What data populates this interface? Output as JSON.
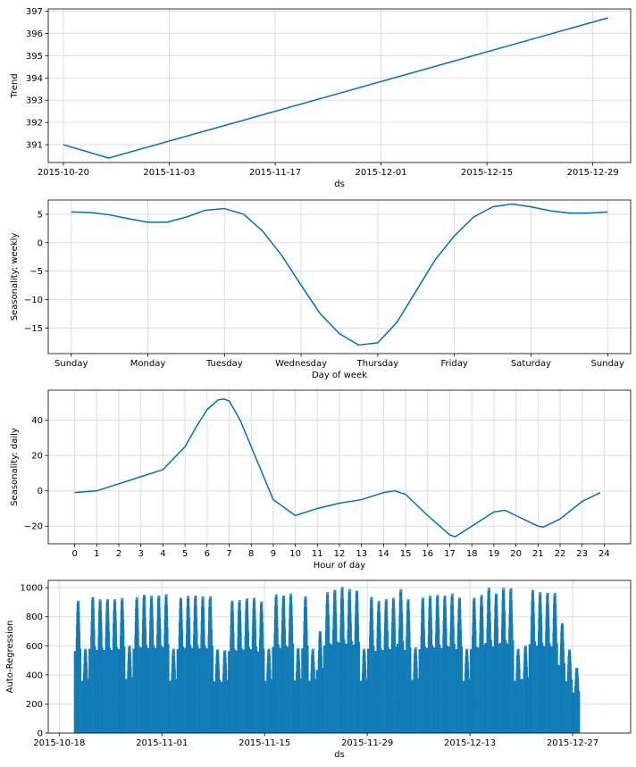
{
  "colors": {
    "series": "#0072B2",
    "grid": "#dddddd"
  },
  "chart_data": [
    {
      "id": "trend",
      "type": "line",
      "xlabel": "ds",
      "ylabel": "Trend",
      "x_type": "date",
      "xlim": [
        "2015-10-18",
        "2016-01-03"
      ],
      "ylim": [
        390.2,
        397.1
      ],
      "x_ticks": [
        "2015-10-20",
        "2015-11-03",
        "2015-11-17",
        "2015-12-01",
        "2015-12-15",
        "2015-12-29"
      ],
      "x_tick_labels": [
        "2015-10-20",
        "2015-11-03",
        "2015-11-17",
        "2015-12-01",
        "2015-12-15",
        "2015-12-29"
      ],
      "y_ticks": [
        391,
        392,
        393,
        394,
        395,
        396,
        397
      ],
      "y_tick_labels": [
        "391",
        "392",
        "393",
        "394",
        "395",
        "396",
        "397"
      ],
      "grid": true,
      "series": [
        {
          "x": [
            "2015-10-20",
            "2015-10-26",
            "2015-12-31"
          ],
          "y": [
            391.0,
            390.4,
            396.7
          ]
        }
      ]
    },
    {
      "id": "weekly",
      "type": "line",
      "xlabel": "Day of week",
      "ylabel": "Seasonality: weekly",
      "xlim": [
        -0.3,
        7.3
      ],
      "ylim": [
        -19.5,
        7.5
      ],
      "x_ticks": [
        0,
        1,
        2,
        3,
        4,
        5,
        6,
        7
      ],
      "x_tick_labels": [
        "Sunday",
        "Monday",
        "Tuesday",
        "Wednesday",
        "Thursday",
        "Friday",
        "Saturday",
        "Sunday"
      ],
      "y_ticks": [
        5,
        0,
        -5,
        -10,
        -15
      ],
      "y_tick_labels": [
        "5",
        "0",
        "−5",
        "−10",
        "−15"
      ],
      "grid": true,
      "series": [
        {
          "x": [
            0,
            0.25,
            0.5,
            0.75,
            1,
            1.25,
            1.5,
            1.75,
            2,
            2.25,
            2.5,
            2.75,
            3,
            3.25,
            3.5,
            3.75,
            4,
            4.25,
            4.5,
            4.75,
            5,
            5.25,
            5.5,
            5.75,
            6,
            6.25,
            6.5,
            6.75,
            7
          ],
          "y": [
            5.4,
            5.3,
            4.9,
            4.2,
            3.6,
            3.6,
            4.5,
            5.7,
            6.0,
            5.0,
            2.0,
            -2.3,
            -7.5,
            -12.5,
            -16.0,
            -18.0,
            -17.6,
            -14.0,
            -8.5,
            -3.0,
            1.2,
            4.5,
            6.3,
            6.8,
            6.3,
            5.6,
            5.2,
            5.2,
            5.4
          ]
        }
      ]
    },
    {
      "id": "daily",
      "type": "line",
      "xlabel": "Hour of day",
      "ylabel": "Seasonality: daily",
      "xlim": [
        -1.2,
        25.2
      ],
      "ylim": [
        -30,
        57
      ],
      "x_ticks": [
        0,
        1,
        2,
        3,
        4,
        5,
        6,
        7,
        8,
        9,
        10,
        11,
        12,
        13,
        14,
        15,
        16,
        17,
        18,
        19,
        20,
        21,
        22,
        23,
        24
      ],
      "x_tick_labels": [
        "0",
        "1",
        "2",
        "3",
        "4",
        "5",
        "6",
        "7",
        "8",
        "9",
        "10",
        "11",
        "12",
        "13",
        "14",
        "15",
        "16",
        "17",
        "18",
        "19",
        "20",
        "21",
        "22",
        "23",
        "24"
      ],
      "y_ticks": [
        40,
        20,
        0,
        -20
      ],
      "y_tick_labels": [
        "40",
        "20",
        "0",
        "−20"
      ],
      "grid": true,
      "series": [
        {
          "x": [
            0,
            1,
            2,
            3,
            4,
            5,
            5.5,
            6,
            6.5,
            6.75,
            7,
            7.5,
            8,
            9,
            10,
            11,
            12,
            13,
            14,
            14.5,
            15,
            16,
            17,
            17.25,
            18,
            19,
            19.5,
            20,
            21,
            21.25,
            22,
            23,
            23.83
          ],
          "y": [
            -1,
            0,
            4,
            8,
            12,
            25,
            36,
            46,
            51.5,
            52,
            51,
            40,
            25,
            -5,
            -14,
            -10,
            -7,
            -5,
            -1,
            0,
            -2,
            -14,
            -25,
            -26,
            -20,
            -12,
            -11,
            -14,
            -20,
            -20.5,
            -16,
            -6,
            -1
          ]
        }
      ]
    },
    {
      "id": "autoregression",
      "type": "bar",
      "xlabel": "ds",
      "ylabel": "Auto-Regression",
      "x_type": "date",
      "xlim": [
        "2015-10-16T12:00",
        "2016-01-03T22:00"
      ],
      "ylim": [
        0,
        1050
      ],
      "x_ticks": [
        "2015-10-18",
        "2015-11-01",
        "2015-11-15",
        "2015-11-29",
        "2015-12-13",
        "2015-12-27"
      ],
      "x_tick_labels": [
        "2015-10-18",
        "2015-11-01",
        "2015-11-15",
        "2015-11-29",
        "2015-12-13",
        "2015-12-27"
      ],
      "y_ticks": [
        0,
        200,
        400,
        600,
        800,
        1000
      ],
      "y_tick_labels": [
        "0",
        "200",
        "400",
        "600",
        "800",
        "1000"
      ],
      "grid": true,
      "bar_width_hours": 1,
      "daily_levels": [
        {
          "date": "2015-10-20",
          "level": 910
        },
        {
          "date": "2015-10-21",
          "level": 580
        },
        {
          "date": "2015-10-22",
          "level": 935
        },
        {
          "date": "2015-10-23",
          "level": 920
        },
        {
          "date": "2015-10-24",
          "level": 920
        },
        {
          "date": "2015-10-25",
          "level": 920
        },
        {
          "date": "2015-10-26",
          "level": 930
        },
        {
          "date": "2015-10-27",
          "level": 600
        },
        {
          "date": "2015-10-28",
          "level": 935
        },
        {
          "date": "2015-10-29",
          "level": 950
        },
        {
          "date": "2015-10-30",
          "level": 945
        },
        {
          "date": "2015-10-31",
          "level": 945
        },
        {
          "date": "2015-11-01",
          "level": 955
        },
        {
          "date": "2015-11-02",
          "level": 580
        },
        {
          "date": "2015-11-03",
          "level": 930
        },
        {
          "date": "2015-11-04",
          "level": 945
        },
        {
          "date": "2015-11-05",
          "level": 945
        },
        {
          "date": "2015-11-06",
          "level": 940
        },
        {
          "date": "2015-11-07",
          "level": 940
        },
        {
          "date": "2015-11-08",
          "level": 575
        },
        {
          "date": "2015-11-09",
          "level": 570
        },
        {
          "date": "2015-11-10",
          "level": 910
        },
        {
          "date": "2015-11-11",
          "level": 915
        },
        {
          "date": "2015-11-12",
          "level": 925
        },
        {
          "date": "2015-11-13",
          "level": 930
        },
        {
          "date": "2015-11-14",
          "level": 905
        },
        {
          "date": "2015-11-15",
          "level": 580
        },
        {
          "date": "2015-11-16",
          "level": 955
        },
        {
          "date": "2015-11-17",
          "level": 945
        },
        {
          "date": "2015-11-18",
          "level": 960
        },
        {
          "date": "2015-11-19",
          "level": 585
        },
        {
          "date": "2015-11-20",
          "level": 940
        },
        {
          "date": "2015-11-21",
          "level": 580
        },
        {
          "date": "2015-11-22",
          "level": 700
        },
        {
          "date": "2015-11-23",
          "level": 970
        },
        {
          "date": "2015-11-24",
          "level": 985
        },
        {
          "date": "2015-11-25",
          "level": 1005
        },
        {
          "date": "2015-11-26",
          "level": 990
        },
        {
          "date": "2015-11-27",
          "level": 980
        },
        {
          "date": "2015-11-28",
          "level": 580
        },
        {
          "date": "2015-11-29",
          "level": 935
        },
        {
          "date": "2015-11-30",
          "level": 910
        },
        {
          "date": "2015-12-01",
          "level": 920
        },
        {
          "date": "2015-12-02",
          "level": 930
        },
        {
          "date": "2015-12-03",
          "level": 990
        },
        {
          "date": "2015-12-04",
          "level": 920
        },
        {
          "date": "2015-12-05",
          "level": 590
        },
        {
          "date": "2015-12-06",
          "level": 930
        },
        {
          "date": "2015-12-07",
          "level": 945
        },
        {
          "date": "2015-12-08",
          "level": 950
        },
        {
          "date": "2015-12-09",
          "level": 945
        },
        {
          "date": "2015-12-10",
          "level": 960
        },
        {
          "date": "2015-12-11",
          "level": 930
        },
        {
          "date": "2015-12-12",
          "level": 580
        },
        {
          "date": "2015-12-13",
          "level": 930
        },
        {
          "date": "2015-12-14",
          "level": 950
        },
        {
          "date": "2015-12-15",
          "level": 1000
        },
        {
          "date": "2015-12-16",
          "level": 960
        },
        {
          "date": "2015-12-17",
          "level": 1000
        },
        {
          "date": "2015-12-18",
          "level": 995
        },
        {
          "date": "2015-12-19",
          "level": 580
        },
        {
          "date": "2015-12-20",
          "level": 600
        },
        {
          "date": "2015-12-21",
          "level": 985
        },
        {
          "date": "2015-12-22",
          "level": 970
        },
        {
          "date": "2015-12-23",
          "level": 965
        },
        {
          "date": "2015-12-24",
          "level": 965
        },
        {
          "date": "2015-12-25",
          "level": 755
        },
        {
          "date": "2015-12-26",
          "level": 575
        },
        {
          "date": "2015-12-27",
          "level": 450
        }
      ]
    }
  ]
}
